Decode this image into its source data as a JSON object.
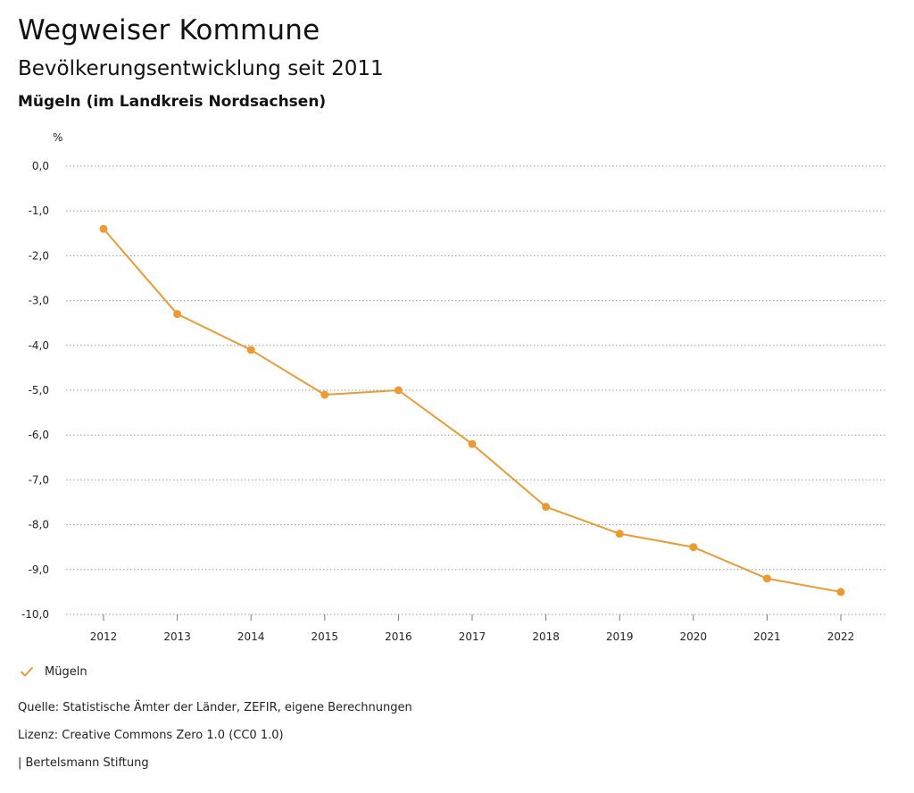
{
  "header": {
    "title": "Wegweiser Kommune",
    "subtitle": "Bevölkerungsentwicklung seit 2011",
    "region": "Mügeln (im Landkreis Nordsachsen)"
  },
  "chart_data": {
    "type": "line",
    "title": "Wegweiser Kommune",
    "subtitle": "Bevölkerungsentwicklung seit 2011",
    "ylabel": "%",
    "xlabel": "",
    "x": [
      2012,
      2013,
      2014,
      2015,
      2016,
      2017,
      2018,
      2019,
      2020,
      2021,
      2022
    ],
    "series": [
      {
        "name": "Mügeln",
        "values": [
          -1.4,
          -3.3,
          -4.1,
          -5.1,
          -5.0,
          -6.2,
          -7.6,
          -8.2,
          -8.5,
          -9.2,
          -9.5
        ],
        "color": "#ec9b34"
      }
    ],
    "ylim": [
      -10,
      0
    ],
    "yticks": [
      0,
      -1,
      -2,
      -3,
      -4,
      -5,
      -6,
      -7,
      -8,
      -9,
      -10
    ],
    "ytick_labels": [
      "0,0",
      "-1,0",
      "-2,0",
      "-3,0",
      "-4,0",
      "-5,0",
      "-6,0",
      "-7,0",
      "-8,0",
      "-9,0",
      "-10,0"
    ],
    "grid": true,
    "legend_position": "bottom-left"
  },
  "legend": {
    "label": "Mügeln",
    "icon": "check-icon"
  },
  "footer": {
    "source": "Quelle: Statistische Ämter der Länder, ZEFIR, eigene Berechnungen",
    "license": "Lizenz: Creative Commons Zero 1.0 (CC0 1.0)",
    "brand": "| Bertelsmann Stiftung"
  },
  "colors": {
    "accent": "#ec9b34",
    "grid": "#9a9a9a",
    "text": "#222222"
  }
}
